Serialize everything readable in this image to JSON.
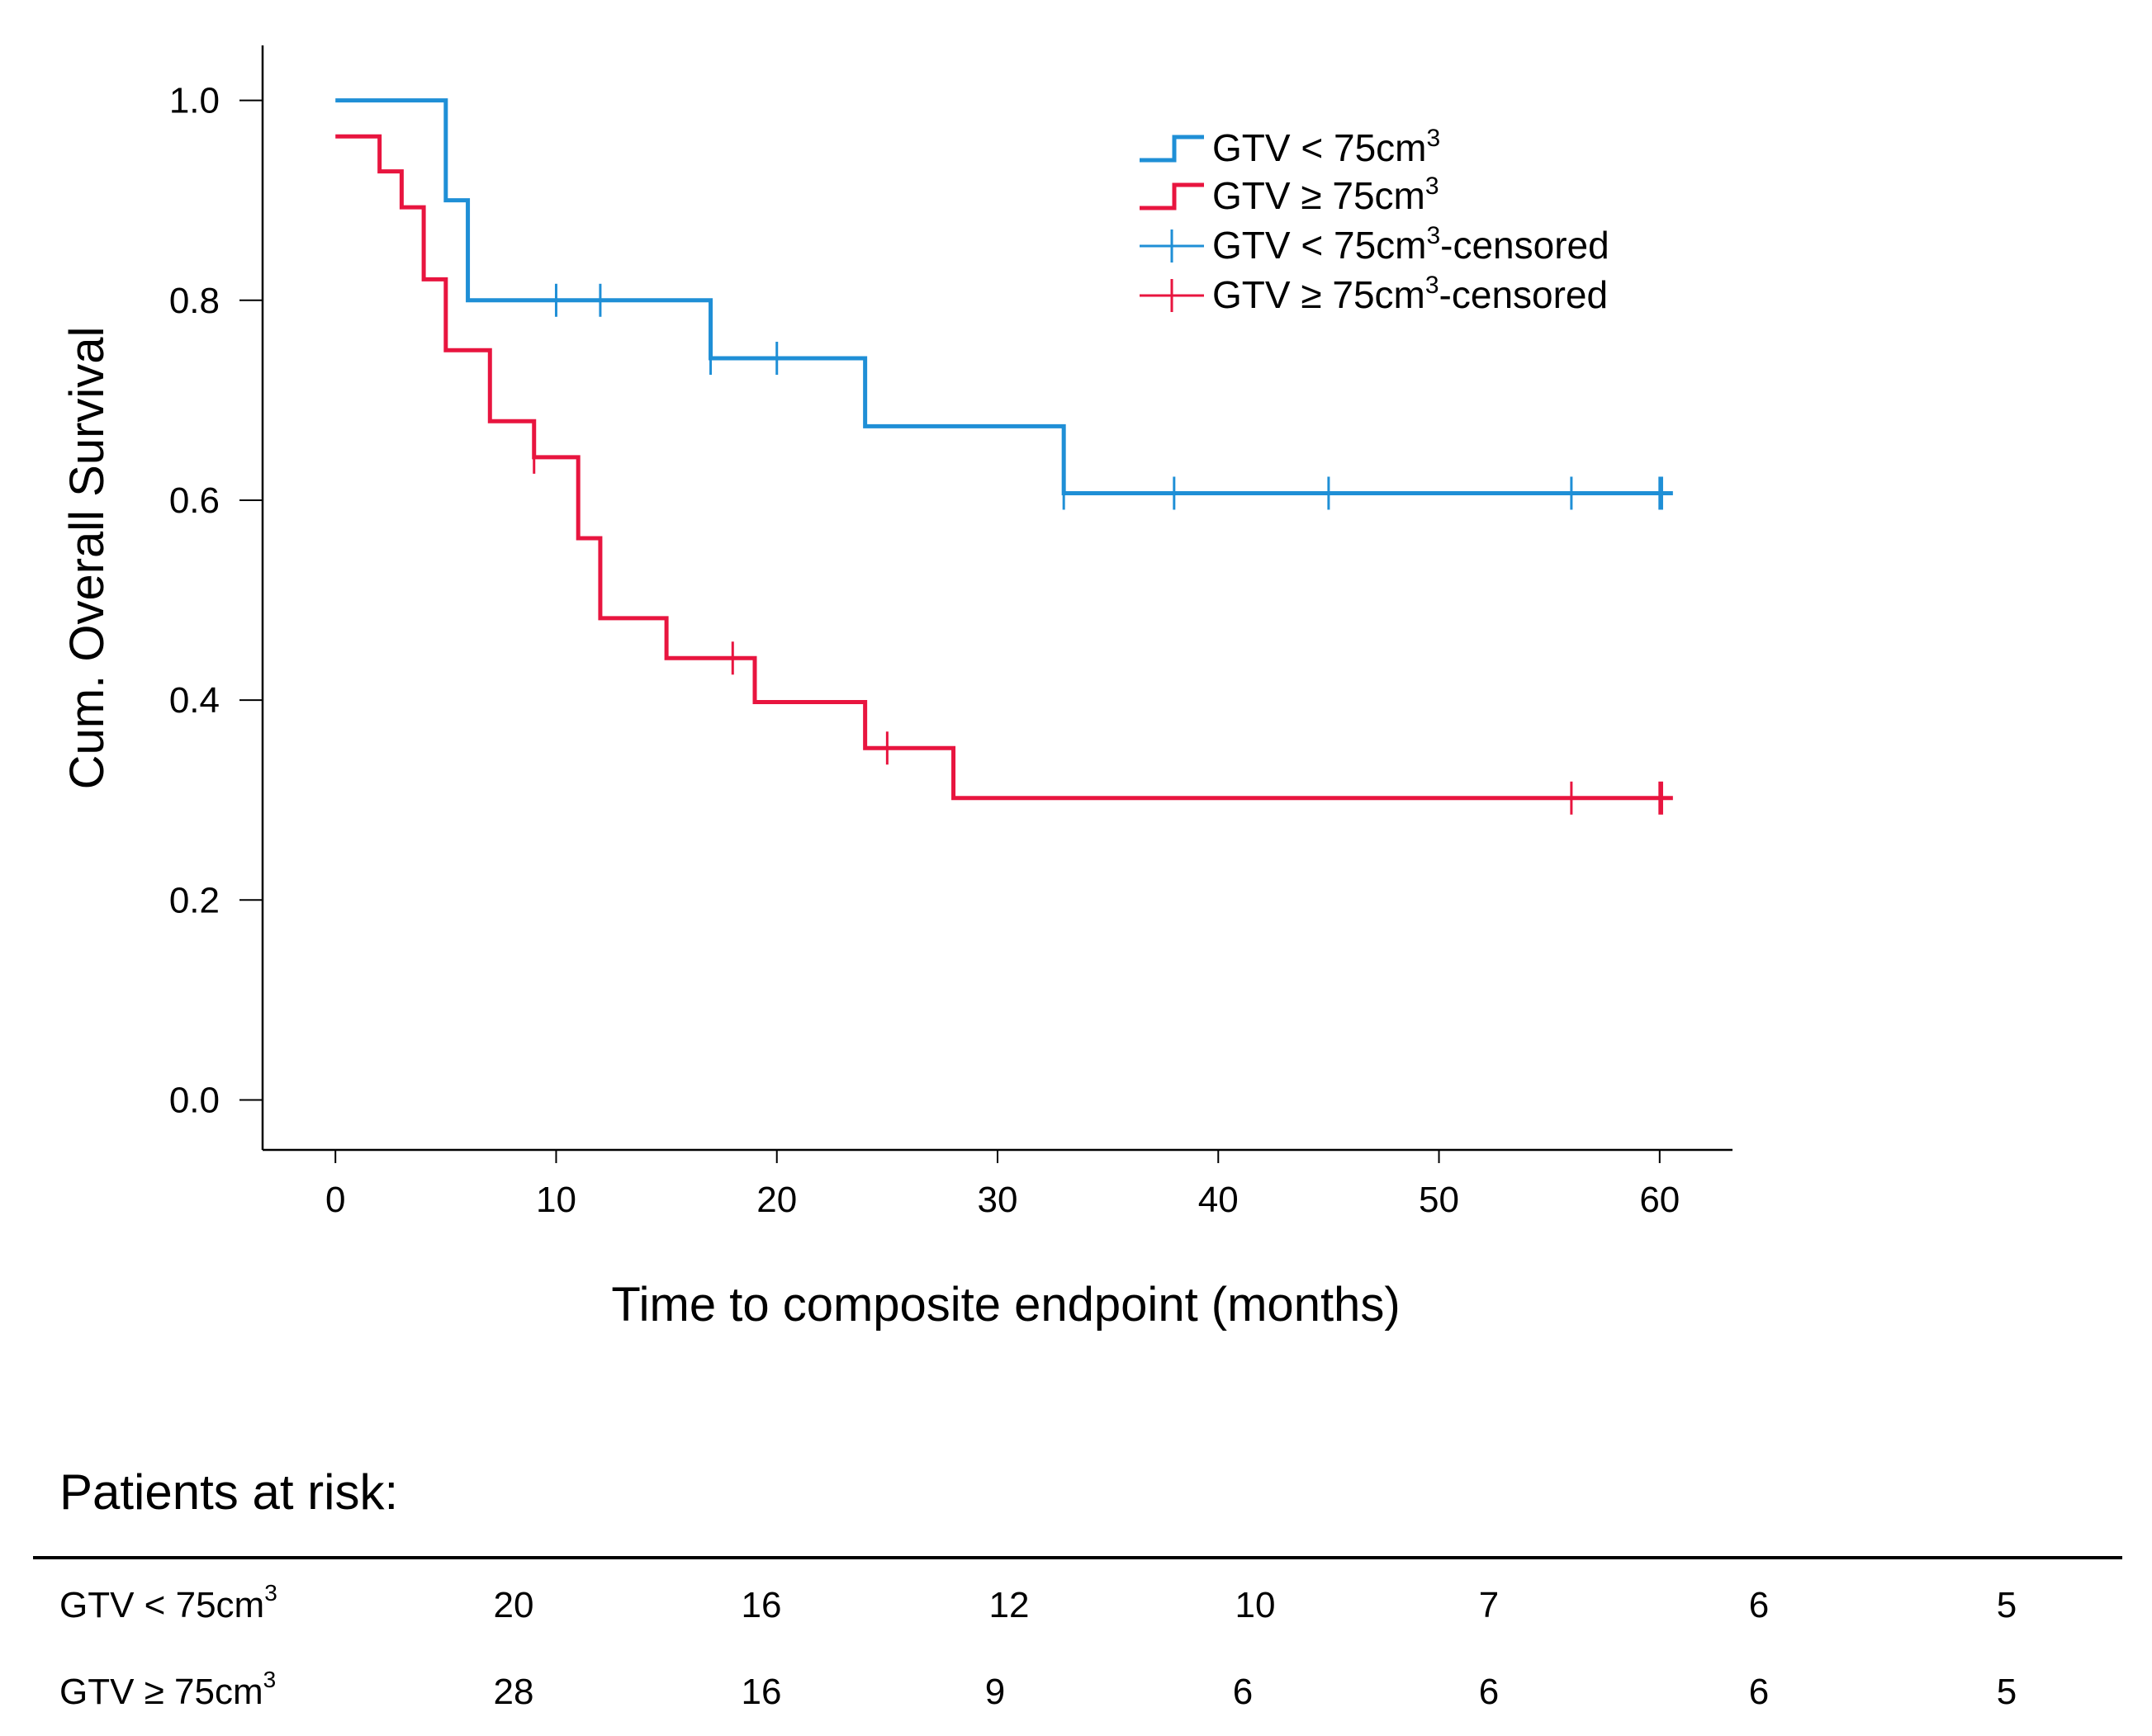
{
  "chart_data": {
    "type": "line",
    "subtype": "kaplan-meier",
    "xlabel": "Time to composite endpoint (months)",
    "ylabel": "Cum. Overall Survival",
    "xlim": [
      -3.3,
      63.3
    ],
    "ylim": [
      -0.05,
      1.055
    ],
    "xticks": [
      "0",
      "10",
      "20",
      "30",
      "40",
      "50",
      "60"
    ],
    "yticks": [
      "0.0",
      "0.2",
      "0.4",
      "0.6",
      "0.8",
      "1.0"
    ],
    "legend_position": "top-right",
    "series": [
      {
        "name": "GTV < 75cm3",
        "label_base": "GTV < 75cm",
        "sup": "3",
        "censored_name": "GTV < 75cm3-censored",
        "censored_suffix": "-censored",
        "color": "#1f8fd6",
        "steps": [
          [
            0,
            1.0
          ],
          [
            5,
            0.9
          ],
          [
            6,
            0.8
          ],
          [
            17,
            0.742
          ],
          [
            24,
            0.674
          ],
          [
            33,
            0.607
          ]
        ],
        "end_x": 60.6,
        "censored": [
          [
            10,
            0.8
          ],
          [
            12,
            0.8
          ],
          [
            17,
            0.742
          ],
          [
            20,
            0.742
          ],
          [
            33,
            0.607
          ],
          [
            38,
            0.607
          ],
          [
            45,
            0.607
          ],
          [
            56,
            0.607
          ],
          [
            60,
            0.607
          ],
          [
            60.1,
            0.607
          ]
        ]
      },
      {
        "name": "GTV ≥ 75cm3",
        "label_base": "GTV ≥ 75cm",
        "sup": "3",
        "censored_name": "GTV ≥ 75cm3-censored",
        "censored_suffix": "-censored",
        "color": "#e8153f",
        "steps": [
          [
            0,
            0.964
          ],
          [
            2,
            0.929
          ],
          [
            3,
            0.893
          ],
          [
            4,
            0.821
          ],
          [
            5,
            0.75
          ],
          [
            7,
            0.679
          ],
          [
            9,
            0.643
          ],
          [
            11,
            0.562
          ],
          [
            12,
            0.482
          ],
          [
            15,
            0.442
          ],
          [
            19,
            0.398
          ],
          [
            24,
            0.352
          ],
          [
            28,
            0.302
          ]
        ],
        "end_x": 60.6,
        "censored": [
          [
            9,
            0.643
          ],
          [
            18,
            0.442
          ],
          [
            25,
            0.352
          ],
          [
            56,
            0.302
          ],
          [
            60,
            0.302
          ],
          [
            60.1,
            0.302
          ]
        ]
      }
    ]
  },
  "risk_table": {
    "title": "Patients at risk:",
    "rows": [
      {
        "label_base": "GTV < 75cm",
        "sup": "3",
        "values": [
          "20",
          "16",
          "12",
          "10",
          "7",
          "6",
          "5"
        ]
      },
      {
        "label_base": "GTV ≥ 75cm",
        "sup": "3",
        "values": [
          "28",
          "16",
          "9",
          "6",
          "6",
          "6",
          "5"
        ]
      }
    ]
  }
}
